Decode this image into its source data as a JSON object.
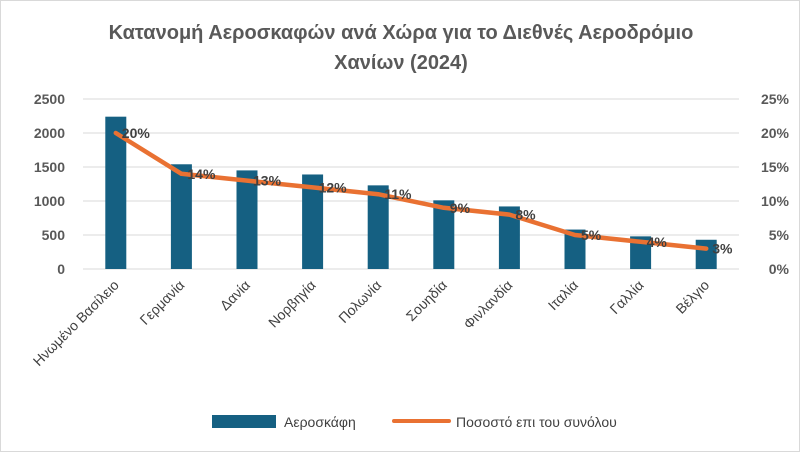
{
  "chart_data": {
    "type": "bar",
    "title_lines": [
      "Κατανομή Αεροσκαφών ανά Χώρα για το Διεθνές Αεροδρόμιο",
      "Χανίων (2024)"
    ],
    "categories": [
      "Ηνωμένο Βασίλειο",
      "Γερμανία",
      "Δανία",
      "Νορβηγία",
      "Πολωνία",
      "Σουηδία",
      "Φινλανδία",
      "Ιταλία",
      "Γαλλία",
      "Βέλγιο"
    ],
    "series": [
      {
        "name": "Αεροσκάφη",
        "type": "bar",
        "axis": "left",
        "color": "#156082",
        "values": [
          2240,
          1540,
          1450,
          1390,
          1230,
          1010,
          920,
          580,
          480,
          430
        ]
      },
      {
        "name": "Ποσοστό επι του συνόλου",
        "type": "line",
        "axis": "right",
        "color": "#E97132",
        "values": [
          20,
          14,
          13,
          12,
          11,
          9,
          8,
          5,
          4,
          3
        ],
        "data_labels": [
          "20%",
          "14%",
          "13%",
          "12%",
          "11%",
          "9%",
          "8%",
          "5%",
          "4%",
          "3%"
        ]
      }
    ],
    "y_left": {
      "min": 0,
      "max": 2500,
      "ticks": [
        "0",
        "500",
        "1000",
        "1500",
        "2000",
        "2500"
      ]
    },
    "y_right": {
      "min": 0,
      "max": 25,
      "ticks": [
        "0%",
        "5%",
        "10%",
        "15%",
        "20%",
        "25%"
      ]
    },
    "grid": true,
    "legend_position": "bottom"
  }
}
